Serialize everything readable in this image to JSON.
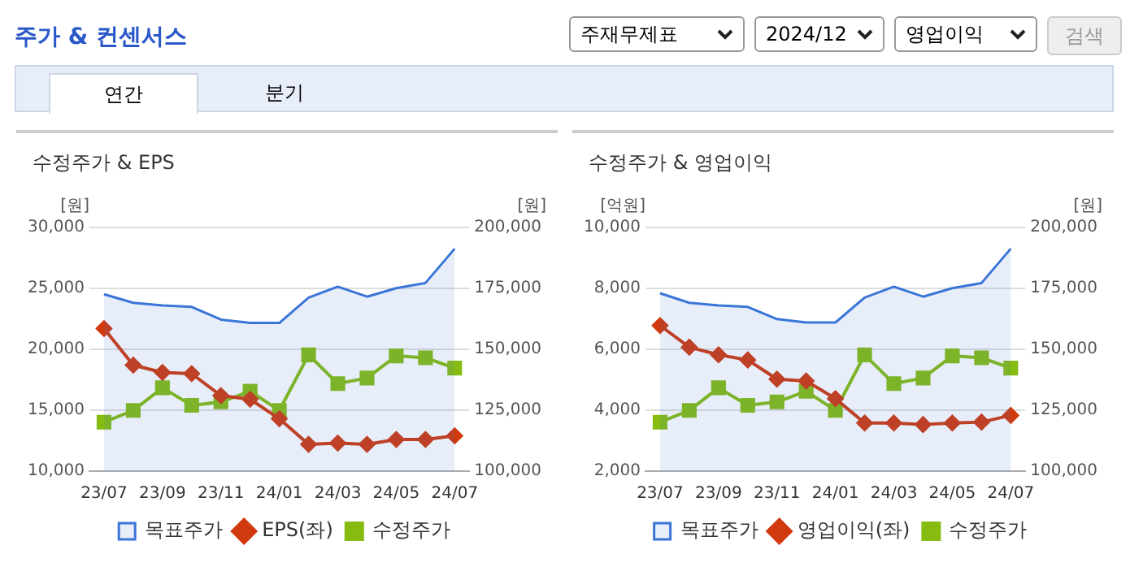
{
  "chart_data": [
    {
      "type": "other",
      "title": "주가 & 컨센서스",
      "annotations": [
        "주재무제표",
        "2024/12",
        "영업이익",
        "검색",
        "연간",
        "분기"
      ]
    },
    {
      "type": "line",
      "title": "수정주가 & EPS",
      "ylabel": "[원]",
      "y2label": "[원]",
      "categories": [
        "23/07",
        null,
        "23/09",
        null,
        "23/11",
        null,
        "24/01",
        null,
        "24/03",
        null,
        "24/05",
        null,
        "24/07"
      ],
      "ylim": [
        10000,
        30000
      ],
      "yticks": [
        {
          "value": 10000,
          "label": "10,000"
        },
        {
          "value": 15000,
          "label": "15,000"
        },
        {
          "value": 20000,
          "label": "20,000"
        },
        {
          "value": 25000,
          "label": "25,000"
        },
        {
          "value": 30000,
          "label": "30,000"
        }
      ],
      "y2lim": [
        100000,
        200000
      ],
      "y2ticks": [
        {
          "value": 100000,
          "label": "100,000"
        },
        {
          "value": 125000,
          "label": "125,000"
        },
        {
          "value": 150000,
          "label": "150,000"
        },
        {
          "value": 175000,
          "label": "175,000"
        },
        {
          "value": 200000,
          "label": "200,000"
        }
      ],
      "grid": "y",
      "legend": "bottom",
      "series": [
        {
          "name": "목표주가",
          "type": "area",
          "axis": "y2",
          "color": "#3a75d8",
          "values": [
            172600,
            169100,
            168000,
            167400,
            162200,
            160800,
            160800,
            171200,
            175700,
            171600,
            175100,
            177200,
            191300
          ]
        },
        {
          "name": "EPS(좌)",
          "type": "line",
          "axis": "y",
          "marker": "diamond",
          "color": "#d13a0e",
          "values": [
            21700,
            18700,
            18100,
            18000,
            16200,
            15900,
            14300,
            12200,
            12300,
            12200,
            12600,
            12600,
            12900
          ]
        },
        {
          "name": "수정주가",
          "type": "line",
          "axis": "y2",
          "marker": "square",
          "color": "#86bc12",
          "values": [
            120100,
            124900,
            134200,
            127000,
            128400,
            132800,
            124900,
            147700,
            135900,
            138200,
            147300,
            146500,
            142300
          ]
        }
      ]
    },
    {
      "type": "line",
      "title": "수정주가 & 영업이익",
      "ylabel": "[억원]",
      "y2label": "[원]",
      "categories": [
        "23/07",
        null,
        "23/09",
        null,
        "23/11",
        null,
        "24/01",
        null,
        "24/03",
        null,
        "24/05",
        null,
        "24/07"
      ],
      "ylim": [
        2000,
        10000
      ],
      "yticks": [
        {
          "value": 2000,
          "label": "2,000"
        },
        {
          "value": 4000,
          "label": "4,000"
        },
        {
          "value": 6000,
          "label": "6,000"
        },
        {
          "value": 8000,
          "label": "8,000"
        },
        {
          "value": 10000,
          "label": "10,000"
        }
      ],
      "y2lim": [
        100000,
        200000
      ],
      "y2ticks": [
        {
          "value": 100000,
          "label": "100,000"
        },
        {
          "value": 125000,
          "label": "125,000"
        },
        {
          "value": 150000,
          "label": "150,000"
        },
        {
          "value": 175000,
          "label": "175,000"
        },
        {
          "value": 200000,
          "label": "200,000"
        }
      ],
      "grid": "y",
      "legend": "bottom",
      "series": [
        {
          "name": "목표주가",
          "type": "area",
          "axis": "y2",
          "color": "#3a75d8",
          "values": [
            173000,
            169100,
            168000,
            167400,
            162400,
            161000,
            161000,
            171200,
            175700,
            171600,
            175100,
            177200,
            191300
          ]
        },
        {
          "name": "영업이익(좌)",
          "type": "line",
          "axis": "y",
          "marker": "diamond",
          "color": "#d13a0e",
          "values": [
            6780,
            6070,
            5820,
            5650,
            5020,
            4960,
            4380,
            3580,
            3580,
            3530,
            3580,
            3610,
            3830
          ]
        },
        {
          "name": "수정주가",
          "type": "line",
          "axis": "y2",
          "marker": "square",
          "color": "#86bc12",
          "values": [
            120100,
            124900,
            134200,
            127000,
            128400,
            132800,
            124900,
            147700,
            135900,
            138200,
            147300,
            146500,
            142300
          ]
        }
      ]
    }
  ]
}
